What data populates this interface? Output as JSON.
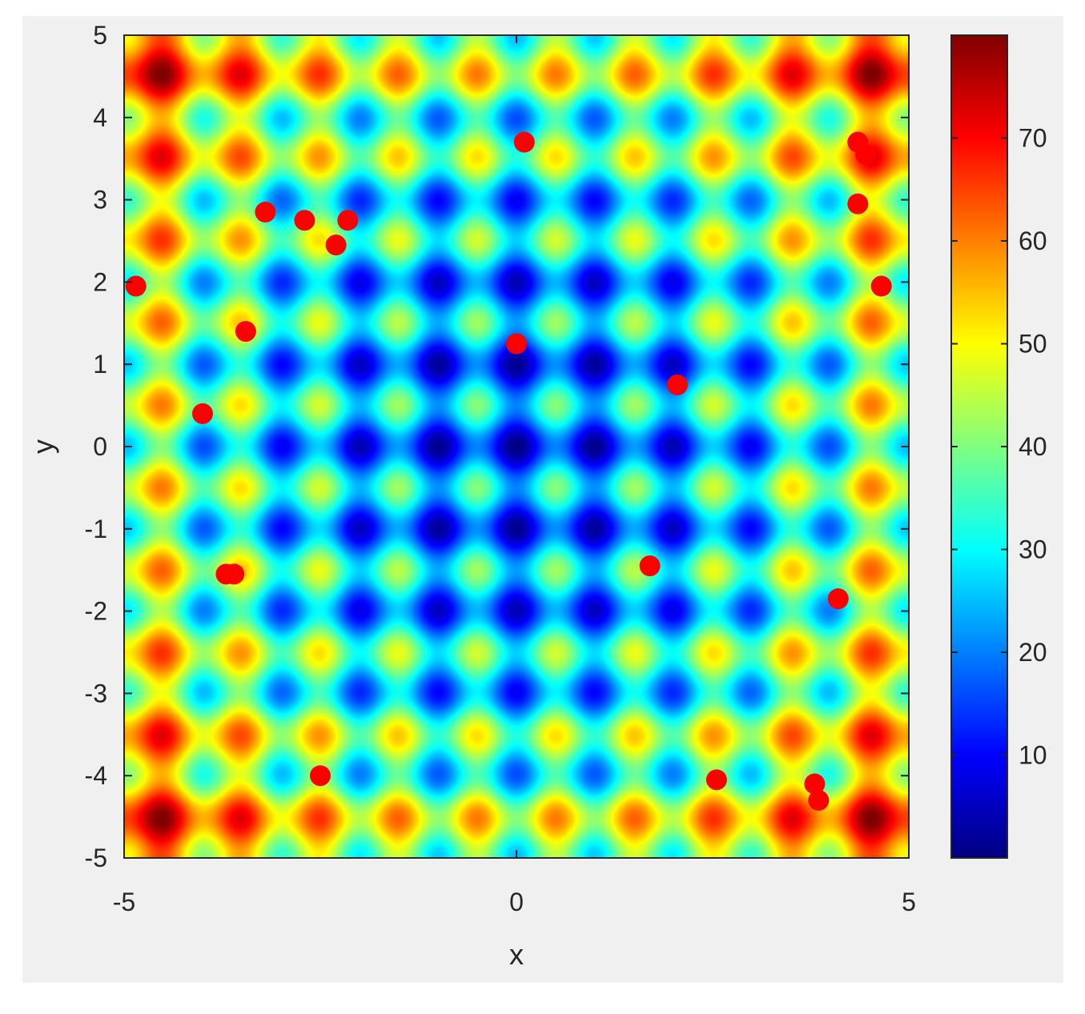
{
  "chart_data": {
    "type": "heatmap",
    "title": "",
    "xlabel": "x",
    "ylabel": "y",
    "xlim": [
      -5,
      5
    ],
    "ylim": [
      -5,
      5
    ],
    "x_ticks": [
      -5,
      0,
      5
    ],
    "y_ticks": [
      -5,
      -4,
      -3,
      -2,
      -1,
      0,
      1,
      2,
      3,
      4,
      5
    ],
    "surface": "20 + x^2 - 10cos(2πx) + y^2 - 10cos(2πy)",
    "colormap": "jet",
    "colorbar": {
      "range": [
        0,
        80
      ],
      "ticks": [
        10,
        20,
        30,
        40,
        50,
        60,
        70
      ],
      "placement": "right"
    },
    "grid": false,
    "points": {
      "color": "#ff0000",
      "x": [
        0.1,
        4.35,
        4.45,
        4.35,
        -3.2,
        -2.7,
        -2.15,
        -2.3,
        -4.85,
        4.65,
        -3.45,
        0.0,
        2.05,
        -4.0,
        -3.7,
        -3.6,
        1.7,
        4.1,
        -2.5,
        2.55,
        3.8,
        3.85
      ],
      "y": [
        3.7,
        3.7,
        3.55,
        2.95,
        2.85,
        2.75,
        2.75,
        2.45,
        1.95,
        1.95,
        1.4,
        1.25,
        0.75,
        0.4,
        -1.55,
        -1.55,
        -1.45,
        -1.85,
        -4.0,
        -4.05,
        -4.1,
        -4.3
      ]
    }
  }
}
